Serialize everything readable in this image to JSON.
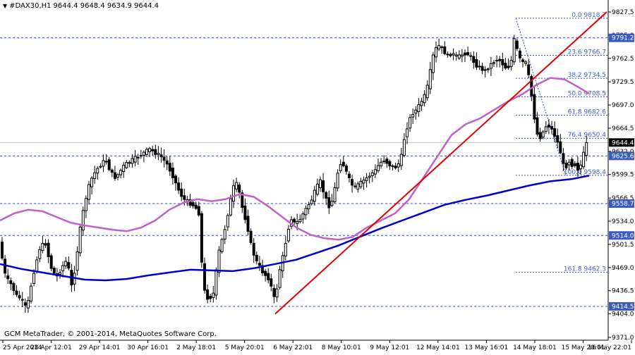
{
  "header": {
    "symbol_timeframe": "#DAX30,H1",
    "ohlc": "9644.4 9648.4 9634.9 9644.4"
  },
  "footer": {
    "copyright": "GCM MetaTrader, © 2001-2014, MetaQuotes Software Corp."
  },
  "colors": {
    "background": "#ffffff",
    "candle": "#000000",
    "ma_fast": "#c060c8",
    "ma_slow": "#0000cc",
    "trendline": "#e00000",
    "level_line": "#3050c0",
    "fibo_text": "#4060d0",
    "level_tag": "#3a5cc0",
    "price_tag": "#000000"
  },
  "chart_data": {
    "type": "candlestick",
    "symbol": "#DAX30",
    "timeframe": "H1",
    "ylim": [
      9371.0,
      9827.5
    ],
    "y_ticks": [
      "9827.5",
      "9795.0",
      "9762.5",
      "9729.5",
      "9697.0",
      "9664.5",
      "9632.0",
      "9599.5",
      "9566.5",
      "9534.0",
      "9501.5",
      "9469.0",
      "9436.5",
      "9404.0",
      "9371.0"
    ],
    "x_ticks": [
      "25 Apr 2014",
      "28 Apr 12:01",
      "29 Apr 14:01",
      "30 Apr 16:01",
      "2 May 18:01",
      "5 May 20:01",
      "6 May 22:01",
      "8 May 10:01",
      "9 May 12:01",
      "12 May 14:01",
      "13 May 16:01",
      "14 May 18:01",
      "15 May 20:01",
      "16 May 22:01"
    ],
    "horizontal_levels": [
      {
        "label": "9791.2",
        "value": 9791.2
      },
      {
        "label": "9625.6",
        "value": 9625.6
      },
      {
        "label": "9558.7",
        "value": 9558.7
      },
      {
        "label": "9514.0",
        "value": 9514.0
      },
      {
        "label": "9414.5",
        "value": 9414.5
      }
    ],
    "current_price": {
      "label": "9644.4",
      "value": 9644.4
    },
    "fibonacci_levels": [
      {
        "label": "0.0 9818.7",
        "value": 9818.7
      },
      {
        "label": "23.6 9766.7",
        "value": 9766.7
      },
      {
        "label": "38.2 9734.5",
        "value": 9734.5
      },
      {
        "label": "50.0 9708.5",
        "value": 9708.5
      },
      {
        "label": "61.8 9682.6",
        "value": 9682.6
      },
      {
        "label": "76.4 9650.4",
        "value": 9650.4
      },
      {
        "label": "100.0 9598.4",
        "value": 9598.4
      },
      {
        "label": "161.8 9462.3",
        "value": 9462.3
      }
    ],
    "price_path": [
      [
        0,
        9510
      ],
      [
        10,
        9455
      ],
      [
        18,
        9445
      ],
      [
        25,
        9430
      ],
      [
        32,
        9425
      ],
      [
        40,
        9410
      ],
      [
        48,
        9455
      ],
      [
        58,
        9495
      ],
      [
        66,
        9505
      ],
      [
        74,
        9470
      ],
      [
        82,
        9455
      ],
      [
        90,
        9470
      ],
      [
        97,
        9480
      ],
      [
        104,
        9440
      ],
      [
        110,
        9480
      ],
      [
        116,
        9525
      ],
      [
        122,
        9560
      ],
      [
        130,
        9590
      ],
      [
        138,
        9605
      ],
      [
        146,
        9615
      ],
      [
        152,
        9620
      ],
      [
        158,
        9605
      ],
      [
        164,
        9595
      ],
      [
        170,
        9600
      ],
      [
        176,
        9610
      ],
      [
        182,
        9615
      ],
      [
        190,
        9620
      ],
      [
        198,
        9625
      ],
      [
        206,
        9630
      ],
      [
        214,
        9635
      ],
      [
        222,
        9630
      ],
      [
        230,
        9625
      ],
      [
        238,
        9615
      ],
      [
        246,
        9600
      ],
      [
        254,
        9580
      ],
      [
        262,
        9565
      ],
      [
        270,
        9560
      ],
      [
        278,
        9555
      ],
      [
        284,
        9545
      ],
      [
        290,
        9440
      ],
      [
        297,
        9425
      ],
      [
        304,
        9430
      ],
      [
        312,
        9490
      ],
      [
        320,
        9520
      ],
      [
        328,
        9560
      ],
      [
        335,
        9590
      ],
      [
        340,
        9580
      ],
      [
        346,
        9550
      ],
      [
        352,
        9530
      ],
      [
        358,
        9500
      ],
      [
        364,
        9480
      ],
      [
        370,
        9470
      ],
      [
        376,
        9460
      ],
      [
        382,
        9455
      ],
      [
        387,
        9440
      ],
      [
        392,
        9420
      ],
      [
        397,
        9460
      ],
      [
        402,
        9480
      ],
      [
        408,
        9510
      ],
      [
        414,
        9540
      ],
      [
        420,
        9530
      ],
      [
        426,
        9535
      ],
      [
        432,
        9545
      ],
      [
        438,
        9555
      ],
      [
        444,
        9565
      ],
      [
        450,
        9580
      ],
      [
        456,
        9590
      ],
      [
        462,
        9570
      ],
      [
        468,
        9555
      ],
      [
        474,
        9565
      ],
      [
        480,
        9600
      ],
      [
        486,
        9620
      ],
      [
        492,
        9605
      ],
      [
        498,
        9590
      ],
      [
        504,
        9580
      ],
      [
        510,
        9585
      ],
      [
        516,
        9590
      ],
      [
        522,
        9595
      ],
      [
        528,
        9600
      ],
      [
        534,
        9605
      ],
      [
        540,
        9615
      ],
      [
        546,
        9620
      ],
      [
        552,
        9615
      ],
      [
        558,
        9610
      ],
      [
        564,
        9610
      ],
      [
        570,
        9620
      ],
      [
        575,
        9650
      ],
      [
        580,
        9670
      ],
      [
        586,
        9685
      ],
      [
        592,
        9690
      ],
      [
        598,
        9700
      ],
      [
        604,
        9710
      ],
      [
        610,
        9730
      ],
      [
        614,
        9760
      ],
      [
        619,
        9775
      ],
      [
        624,
        9780
      ],
      [
        630,
        9775
      ],
      [
        636,
        9765
      ],
      [
        642,
        9770
      ],
      [
        648,
        9765
      ],
      [
        654,
        9765
      ],
      [
        660,
        9770
      ],
      [
        666,
        9768
      ],
      [
        672,
        9760
      ],
      [
        678,
        9752
      ],
      [
        684,
        9748
      ],
      [
        690,
        9745
      ],
      [
        696,
        9752
      ],
      [
        702,
        9758
      ],
      [
        708,
        9762
      ],
      [
        714,
        9755
      ],
      [
        720,
        9748
      ],
      [
        726,
        9755
      ],
      [
        731,
        9790
      ],
      [
        736,
        9770
      ],
      [
        741,
        9755
      ],
      [
        746,
        9760
      ],
      [
        750,
        9745
      ],
      [
        754,
        9720
      ],
      [
        758,
        9690
      ],
      [
        762,
        9660
      ],
      [
        766,
        9650
      ],
      [
        770,
        9655
      ],
      [
        774,
        9665
      ],
      [
        778,
        9670
      ],
      [
        782,
        9665
      ],
      [
        786,
        9660
      ],
      [
        790,
        9650
      ],
      [
        794,
        9640
      ],
      [
        798,
        9625
      ],
      [
        802,
        9605
      ],
      [
        806,
        9615
      ],
      [
        810,
        9620
      ],
      [
        814,
        9610
      ],
      [
        818,
        9615
      ],
      [
        822,
        9605
      ],
      [
        826,
        9615
      ],
      [
        830,
        9632
      ],
      [
        834,
        9644.4
      ]
    ],
    "ma_fast_path": [
      [
        0,
        9535
      ],
      [
        20,
        9545
      ],
      [
        40,
        9550
      ],
      [
        60,
        9548
      ],
      [
        80,
        9540
      ],
      [
        100,
        9532
      ],
      [
        120,
        9528
      ],
      [
        140,
        9525
      ],
      [
        160,
        9522
      ],
      [
        180,
        9520
      ],
      [
        200,
        9525
      ],
      [
        220,
        9535
      ],
      [
        240,
        9550
      ],
      [
        260,
        9560
      ],
      [
        280,
        9565
      ],
      [
        300,
        9562
      ],
      [
        320,
        9565
      ],
      [
        340,
        9572
      ],
      [
        360,
        9568
      ],
      [
        380,
        9555
      ],
      [
        400,
        9540
      ],
      [
        420,
        9525
      ],
      [
        440,
        9515
      ],
      [
        460,
        9510
      ],
      [
        480,
        9508
      ],
      [
        500,
        9512
      ],
      [
        520,
        9525
      ],
      [
        540,
        9535
      ],
      [
        560,
        9545
      ],
      [
        580,
        9565
      ],
      [
        600,
        9595
      ],
      [
        620,
        9625
      ],
      [
        640,
        9655
      ],
      [
        660,
        9670
      ],
      [
        680,
        9678
      ],
      [
        700,
        9690
      ],
      [
        720,
        9702
      ],
      [
        740,
        9712
      ],
      [
        760,
        9725
      ],
      [
        780,
        9735
      ],
      [
        800,
        9733
      ],
      [
        820,
        9722
      ],
      [
        835,
        9713
      ]
    ],
    "ma_slow_path": [
      [
        0,
        9474
      ],
      [
        30,
        9467
      ],
      [
        60,
        9462
      ],
      [
        90,
        9457
      ],
      [
        120,
        9452
      ],
      [
        150,
        9451
      ],
      [
        180,
        9453
      ],
      [
        210,
        9458
      ],
      [
        240,
        9462
      ],
      [
        270,
        9466
      ],
      [
        300,
        9465
      ],
      [
        330,
        9464
      ],
      [
        360,
        9468
      ],
      [
        390,
        9474
      ],
      [
        420,
        9480
      ],
      [
        450,
        9490
      ],
      [
        480,
        9500
      ],
      [
        510,
        9512
      ],
      [
        540,
        9524
      ],
      [
        570,
        9535
      ],
      [
        600,
        9546
      ],
      [
        630,
        9557
      ],
      [
        660,
        9564
      ],
      [
        690,
        9570
      ],
      [
        720,
        9577
      ],
      [
        750,
        9584
      ],
      [
        780,
        9590
      ],
      [
        810,
        9593
      ],
      [
        835,
        9598
      ]
    ],
    "trendline": [
      [
        390,
        9404
      ],
      [
        860,
        9827.5
      ]
    ]
  }
}
